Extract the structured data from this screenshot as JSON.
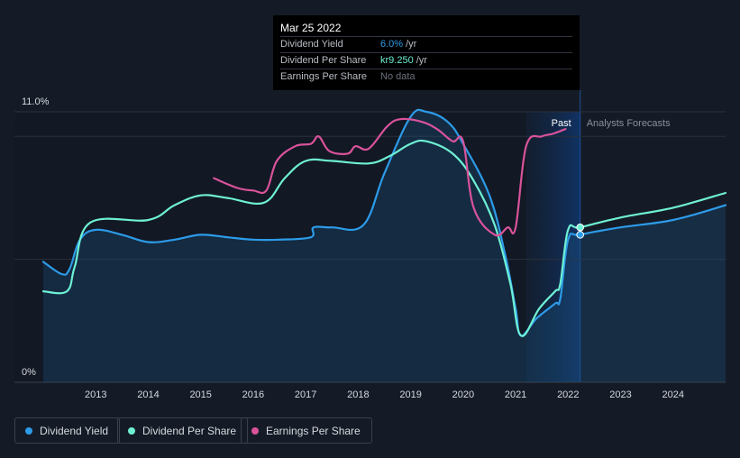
{
  "tooltip": {
    "date": "Mar 25 2022",
    "rows": [
      {
        "label": "Dividend Yield",
        "value": "6.0%",
        "unit": "/yr"
      },
      {
        "label": "Dividend Per Share",
        "value": "kr9.250",
        "unit": "/yr"
      },
      {
        "label": "Earnings Per Share",
        "value": "No data",
        "unit": ""
      }
    ]
  },
  "legend": [
    {
      "name": "Dividend Yield",
      "color": "#2d9be8"
    },
    {
      "name": "Dividend Per Share",
      "color": "#6ef0d4"
    },
    {
      "name": "Earnings Per Share",
      "color": "#d9539a"
    }
  ],
  "chart_data": {
    "type": "line",
    "y_labels": {
      "top": "11.0%",
      "bottom": "0%"
    },
    "ylim": [
      0,
      11
    ],
    "xlim": [
      2012,
      2025
    ],
    "x_ticks": [
      2013,
      2014,
      2015,
      2016,
      2017,
      2018,
      2019,
      2020,
      2021,
      2022,
      2023,
      2024
    ],
    "regions": {
      "past_label": "Past",
      "forecast_label": "Analysts Forecasts",
      "divider_x": 2022.23
    },
    "grid": "horizontal",
    "series": [
      {
        "name": "Dividend Yield",
        "color": "#2d9be8",
        "area": true,
        "points": [
          [
            2012.0,
            4.9
          ],
          [
            2012.35,
            4.4
          ],
          [
            2012.5,
            4.6
          ],
          [
            2012.7,
            5.8
          ],
          [
            2013.0,
            6.2
          ],
          [
            2013.5,
            6.0
          ],
          [
            2014.0,
            5.7
          ],
          [
            2014.5,
            5.8
          ],
          [
            2015.0,
            6.0
          ],
          [
            2015.5,
            5.9
          ],
          [
            2016.0,
            5.8
          ],
          [
            2016.5,
            5.8
          ],
          [
            2017.1,
            5.9
          ],
          [
            2017.15,
            6.3
          ],
          [
            2017.5,
            6.3
          ],
          [
            2018.1,
            6.4
          ],
          [
            2018.5,
            8.5
          ],
          [
            2019.0,
            10.8
          ],
          [
            2019.3,
            11.0
          ],
          [
            2019.7,
            10.6
          ],
          [
            2020.0,
            9.7
          ],
          [
            2020.5,
            7.6
          ],
          [
            2020.8,
            5.2
          ],
          [
            2021.0,
            3.0
          ],
          [
            2021.1,
            1.9
          ],
          [
            2021.4,
            2.6
          ],
          [
            2021.75,
            3.2
          ],
          [
            2021.85,
            3.4
          ],
          [
            2022.0,
            5.8
          ],
          [
            2022.23,
            6.0
          ],
          [
            2023.0,
            6.3
          ],
          [
            2024.0,
            6.6
          ],
          [
            2025.0,
            7.2
          ]
        ]
      },
      {
        "name": "Dividend Per Share",
        "color": "#6ef0d4",
        "area": false,
        "points": [
          [
            2012.0,
            3.7
          ],
          [
            2012.45,
            3.7
          ],
          [
            2012.6,
            4.7
          ],
          [
            2012.9,
            6.5
          ],
          [
            2014.0,
            6.6
          ],
          [
            2014.5,
            7.2
          ],
          [
            2015.0,
            7.6
          ],
          [
            2015.5,
            7.5
          ],
          [
            2016.2,
            7.3
          ],
          [
            2016.6,
            8.3
          ],
          [
            2017.0,
            9.0
          ],
          [
            2017.5,
            9.0
          ],
          [
            2018.2,
            8.9
          ],
          [
            2018.6,
            9.2
          ],
          [
            2019.0,
            9.7
          ],
          [
            2019.3,
            9.8
          ],
          [
            2019.8,
            9.3
          ],
          [
            2020.2,
            8.2
          ],
          [
            2020.6,
            6.4
          ],
          [
            2020.9,
            4.0
          ],
          [
            2021.1,
            1.9
          ],
          [
            2021.45,
            3.0
          ],
          [
            2021.75,
            3.7
          ],
          [
            2021.85,
            4.0
          ],
          [
            2022.0,
            6.2
          ],
          [
            2022.23,
            6.3
          ],
          [
            2023.0,
            6.7
          ],
          [
            2024.0,
            7.1
          ],
          [
            2025.0,
            7.7
          ]
        ]
      },
      {
        "name": "Earnings Per Share",
        "color": "#d9539a",
        "area": false,
        "points": [
          [
            2015.25,
            8.3
          ],
          [
            2015.7,
            7.9
          ],
          [
            2016.0,
            7.8
          ],
          [
            2016.25,
            7.8
          ],
          [
            2016.45,
            9.0
          ],
          [
            2016.8,
            9.6
          ],
          [
            2017.1,
            9.7
          ],
          [
            2017.25,
            10.0
          ],
          [
            2017.45,
            9.4
          ],
          [
            2017.8,
            9.3
          ],
          [
            2017.95,
            9.6
          ],
          [
            2018.2,
            9.5
          ],
          [
            2018.55,
            10.4
          ],
          [
            2018.8,
            10.7
          ],
          [
            2019.2,
            10.6
          ],
          [
            2019.5,
            10.3
          ],
          [
            2019.8,
            9.8
          ],
          [
            2020.0,
            9.8
          ],
          [
            2020.2,
            7.1
          ],
          [
            2020.6,
            6.0
          ],
          [
            2020.85,
            6.3
          ],
          [
            2021.0,
            6.3
          ],
          [
            2021.2,
            9.6
          ],
          [
            2021.5,
            10.0
          ],
          [
            2021.7,
            10.1
          ],
          [
            2021.95,
            10.3
          ]
        ]
      }
    ]
  }
}
